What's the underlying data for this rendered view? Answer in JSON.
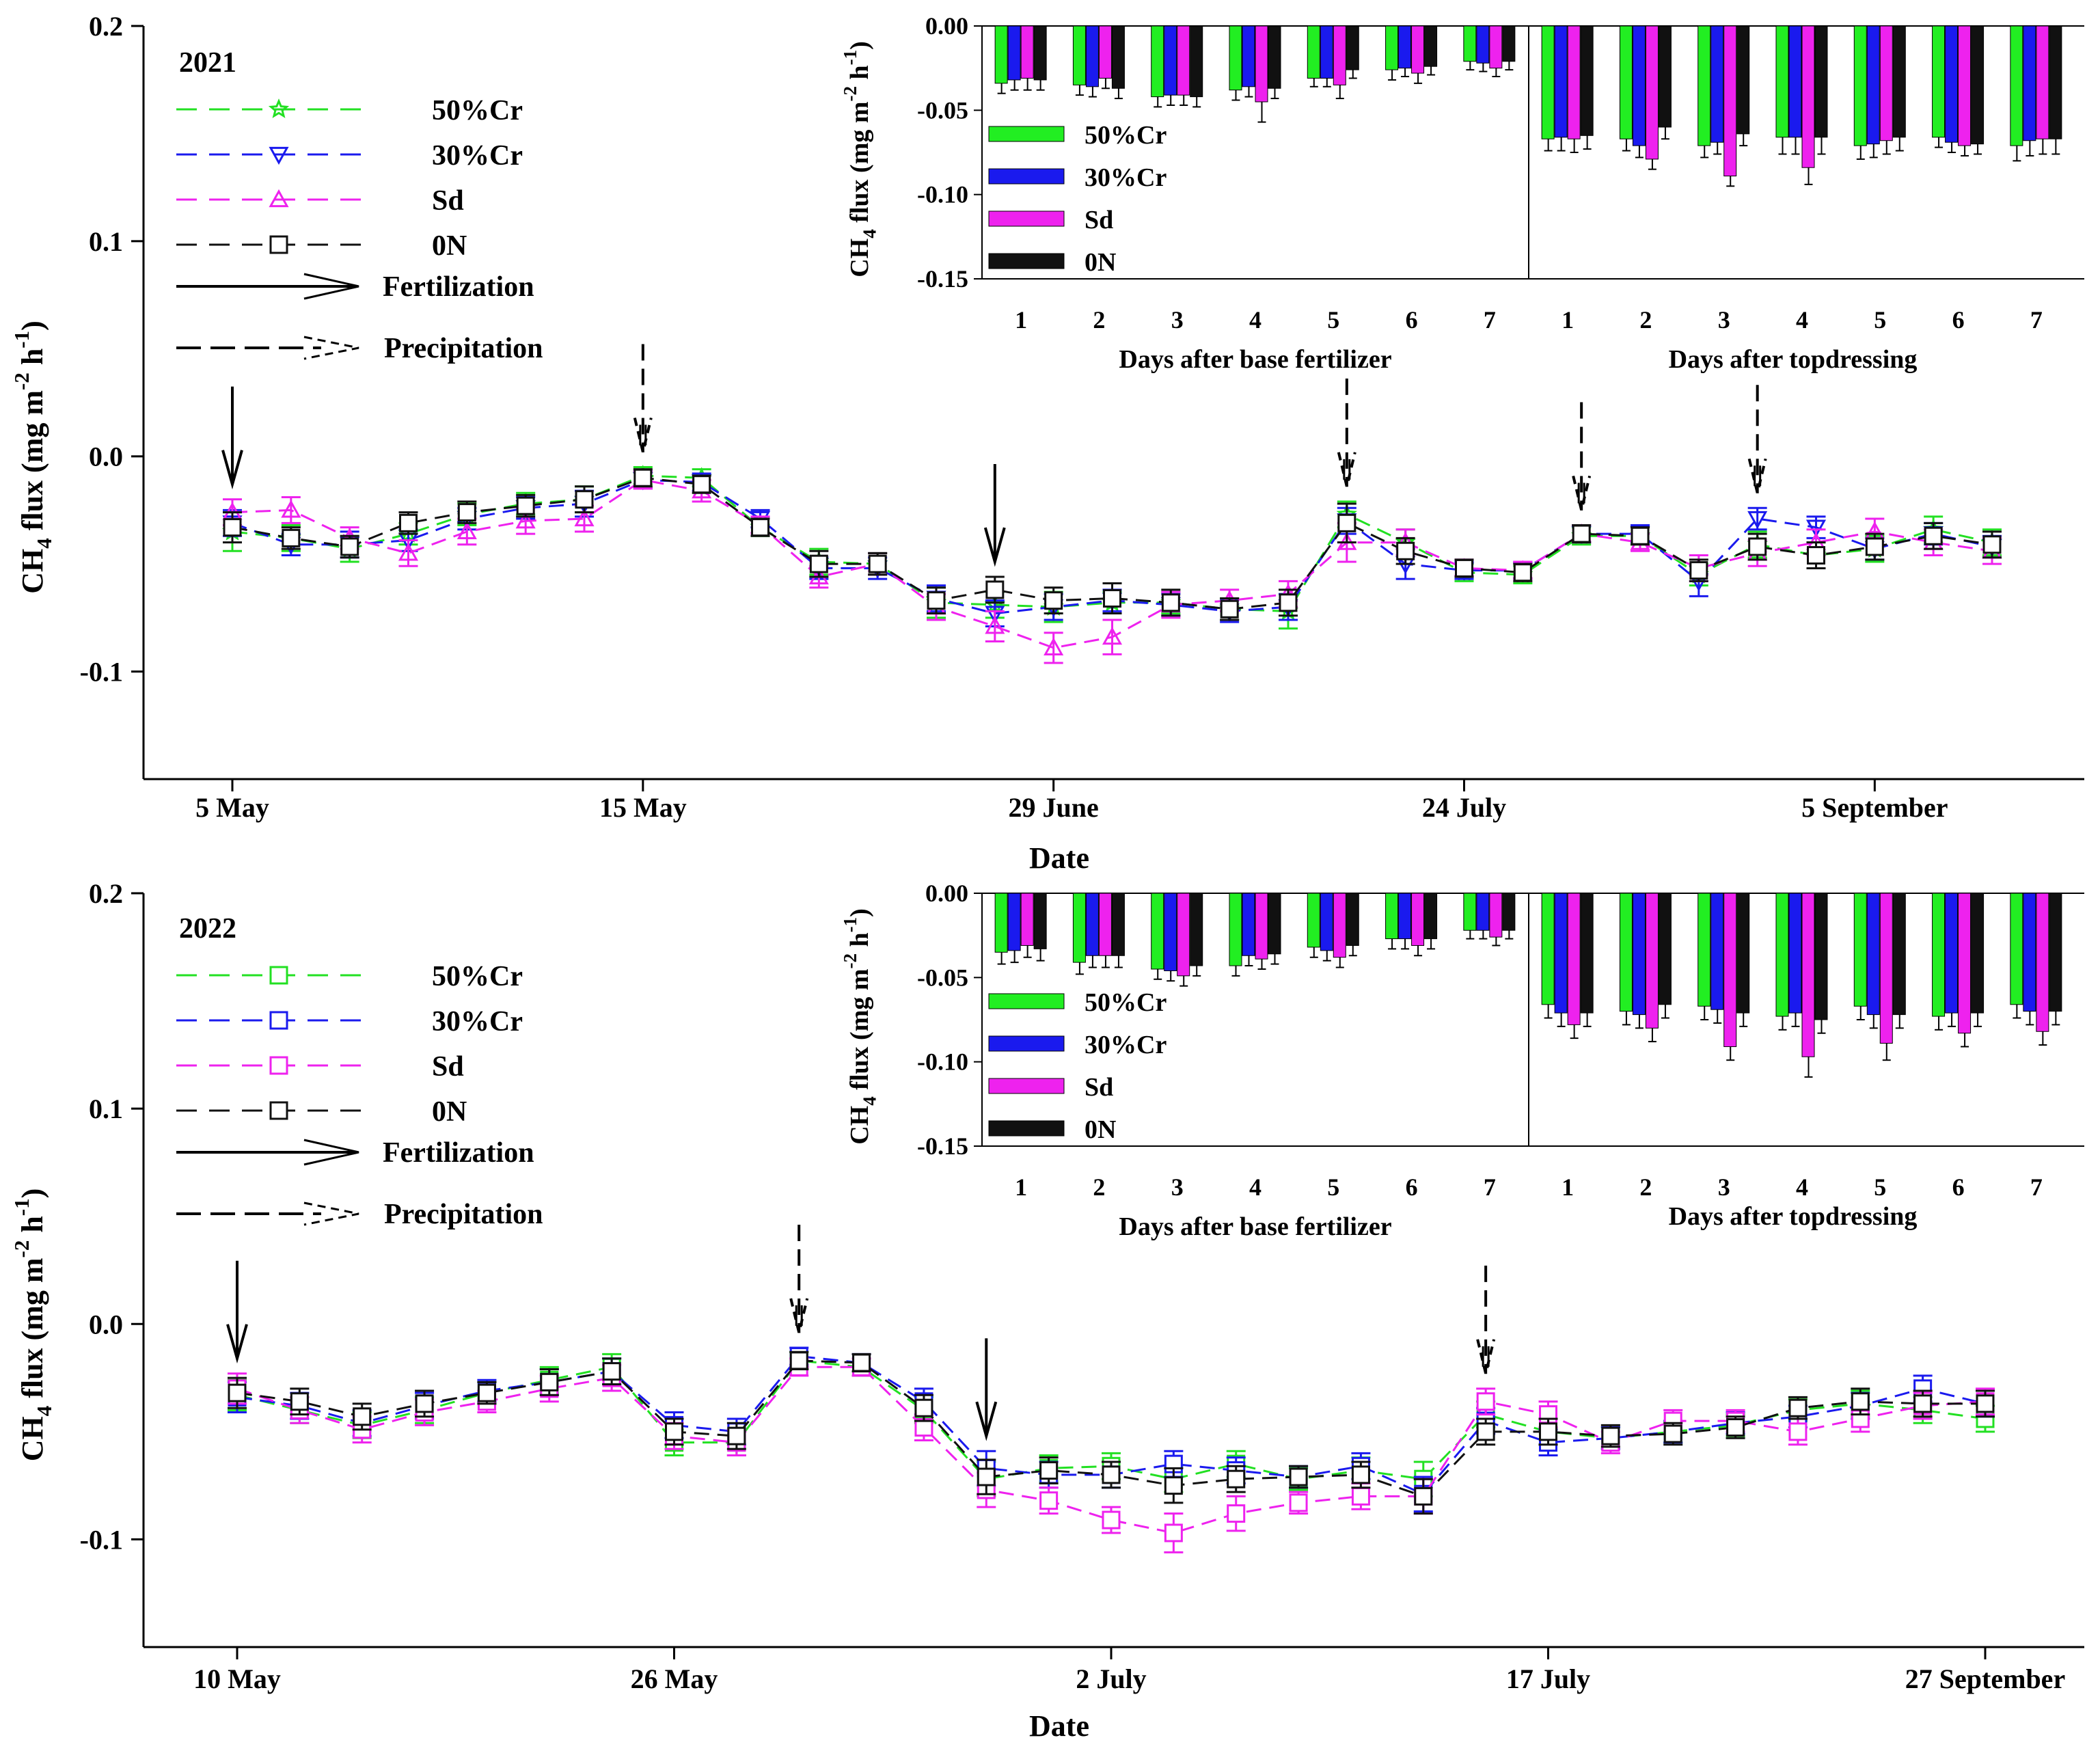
{
  "chart_data": [
    {
      "type": "line",
      "year_label": "2021",
      "xlabel": "Date",
      "ylabel": "CH4 flux (mg m-2 h-1)",
      "ylim": [
        -0.15,
        0.2
      ],
      "yticks": [
        "0.2",
        "0.1",
        "0.0",
        "-0.1"
      ],
      "x_tick_labels": [
        "5 May",
        "15 May",
        "29 June",
        "24 July",
        "5 September"
      ],
      "x_tick_index": [
        0,
        7,
        14,
        21,
        28
      ],
      "x_count": 31,
      "series": [
        {
          "name": "50%Cr",
          "color": "#22e022",
          "marker": "star",
          "values": [
            -0.035,
            -0.038,
            -0.043,
            -0.036,
            -0.027,
            -0.022,
            -0.02,
            -0.009,
            -0.01,
            -0.033,
            -0.049,
            -0.05,
            -0.068,
            -0.069,
            -0.07,
            -0.068,
            -0.068,
            -0.071,
            -0.072,
            -0.027,
            -0.04,
            -0.054,
            -0.055,
            -0.037,
            -0.037,
            -0.055,
            -0.041,
            -0.046,
            -0.043,
            -0.034,
            -0.04
          ],
          "errors": [
            0.009,
            0.006,
            0.006,
            0.005,
            0.005,
            0.005,
            0.006,
            0.004,
            0.004,
            0.004,
            0.006,
            0.005,
            0.007,
            0.006,
            0.007,
            0.005,
            0.005,
            0.005,
            0.008,
            0.006,
            0.006,
            0.004,
            0.004,
            0.004,
            0.004,
            0.005,
            0.006,
            0.006,
            0.006,
            0.006,
            0.006
          ]
        },
        {
          "name": "30%Cr",
          "color": "#1a1aee",
          "marker": "triangle-down",
          "values": [
            -0.031,
            -0.041,
            -0.041,
            -0.039,
            -0.029,
            -0.024,
            -0.022,
            -0.011,
            -0.012,
            -0.029,
            -0.052,
            -0.052,
            -0.066,
            -0.073,
            -0.07,
            -0.067,
            -0.069,
            -0.072,
            -0.07,
            -0.03,
            -0.05,
            -0.053,
            -0.053,
            -0.036,
            -0.036,
            -0.058,
            -0.029,
            -0.033,
            -0.043,
            -0.036,
            -0.042
          ],
          "errors": [
            0.006,
            0.005,
            0.006,
            0.005,
            0.005,
            0.005,
            0.006,
            0.004,
            0.004,
            0.004,
            0.005,
            0.005,
            0.006,
            0.006,
            0.006,
            0.005,
            0.005,
            0.005,
            0.006,
            0.006,
            0.007,
            0.004,
            0.004,
            0.004,
            0.004,
            0.007,
            0.005,
            0.005,
            0.005,
            0.005,
            0.005
          ]
        },
        {
          "name": "Sd",
          "color": "#ee22ee",
          "marker": "triangle-up",
          "values": [
            -0.026,
            -0.025,
            -0.038,
            -0.045,
            -0.035,
            -0.03,
            -0.029,
            -0.011,
            -0.016,
            -0.032,
            -0.056,
            -0.05,
            -0.07,
            -0.079,
            -0.089,
            -0.084,
            -0.069,
            -0.067,
            -0.064,
            -0.04,
            -0.04,
            -0.052,
            -0.053,
            -0.036,
            -0.04,
            -0.052,
            -0.045,
            -0.04,
            -0.035,
            -0.04,
            -0.044
          ],
          "errors": [
            0.006,
            0.006,
            0.005,
            0.006,
            0.006,
            0.006,
            0.006,
            0.004,
            0.005,
            0.004,
            0.005,
            0.005,
            0.006,
            0.007,
            0.007,
            0.008,
            0.006,
            0.005,
            0.006,
            0.009,
            0.006,
            0.004,
            0.004,
            0.004,
            0.004,
            0.006,
            0.006,
            0.006,
            0.006,
            0.006,
            0.006
          ]
        },
        {
          "name": "0N",
          "color": "#111111",
          "marker": "square",
          "values": [
            -0.033,
            -0.038,
            -0.042,
            -0.031,
            -0.026,
            -0.023,
            -0.02,
            -0.01,
            -0.013,
            -0.033,
            -0.05,
            -0.05,
            -0.067,
            -0.062,
            -0.067,
            -0.066,
            -0.068,
            -0.071,
            -0.068,
            -0.031,
            -0.044,
            -0.052,
            -0.054,
            -0.036,
            -0.037,
            -0.053,
            -0.042,
            -0.046,
            -0.042,
            -0.037,
            -0.041
          ],
          "errors": [
            0.007,
            0.005,
            0.005,
            0.005,
            0.005,
            0.005,
            0.006,
            0.004,
            0.004,
            0.004,
            0.006,
            0.005,
            0.006,
            0.006,
            0.006,
            0.007,
            0.006,
            0.005,
            0.006,
            0.009,
            0.006,
            0.004,
            0.004,
            0.004,
            0.004,
            0.005,
            0.006,
            0.006,
            0.006,
            0.006,
            0.006
          ]
        }
      ],
      "fertilization_arrow_index": [
        0,
        13
      ],
      "precipitation_arrow_index": [
        7,
        19,
        23,
        26
      ],
      "legend": {
        "location": "top-left",
        "fertilization_label": "Fertilization",
        "precipitation_label": "Precipitation"
      },
      "inset": {
        "type": "bar",
        "ylabel": "CH4 flux (mg m-2 h-1)",
        "ylim": [
          -0.15,
          0.0
        ],
        "yticks": [
          "0.00",
          "-0.05",
          "-0.10",
          "-0.15"
        ],
        "day_labels": [
          "1",
          "2",
          "3",
          "4",
          "5",
          "6",
          "7"
        ],
        "panel_labels": [
          "Days after base fertilizer",
          "Days after topdressing"
        ],
        "series": [
          {
            "name": "50%Cr",
            "color": "#22ee22",
            "values": [
              -0.034,
              -0.035,
              -0.042,
              -0.038,
              -0.031,
              -0.026,
              -0.021,
              -0.067,
              -0.067,
              -0.071,
              -0.066,
              -0.071,
              -0.066,
              -0.071
            ],
            "errors": [
              0.006,
              0.006,
              0.006,
              0.006,
              0.005,
              0.006,
              0.005,
              0.007,
              0.007,
              0.007,
              0.01,
              0.008,
              0.006,
              0.009
            ]
          },
          {
            "name": "30%Cr",
            "color": "#1a1aee",
            "values": [
              -0.032,
              -0.036,
              -0.041,
              -0.036,
              -0.031,
              -0.025,
              -0.022,
              -0.066,
              -0.071,
              -0.069,
              -0.066,
              -0.07,
              -0.069,
              -0.068
            ],
            "errors": [
              0.006,
              0.006,
              0.006,
              0.006,
              0.005,
              0.005,
              0.005,
              0.008,
              0.007,
              0.007,
              0.01,
              0.008,
              0.006,
              0.009
            ]
          },
          {
            "name": "Sd",
            "color": "#ee22ee",
            "values": [
              -0.031,
              -0.031,
              -0.041,
              -0.045,
              -0.035,
              -0.028,
              -0.025,
              -0.067,
              -0.079,
              -0.089,
              -0.084,
              -0.068,
              -0.071,
              -0.067
            ],
            "errors": [
              0.007,
              0.006,
              0.006,
              0.012,
              0.008,
              0.006,
              0.005,
              0.008,
              0.006,
              0.006,
              0.01,
              0.008,
              0.006,
              0.009
            ]
          },
          {
            "name": "0N",
            "color": "#111111",
            "values": [
              -0.032,
              -0.037,
              -0.042,
              -0.037,
              -0.026,
              -0.024,
              -0.021,
              -0.065,
              -0.06,
              -0.064,
              -0.066,
              -0.066,
              -0.07,
              -0.067
            ],
            "errors": [
              0.006,
              0.006,
              0.006,
              0.006,
              0.005,
              0.005,
              0.005,
              0.008,
              0.007,
              0.007,
              0.01,
              0.008,
              0.006,
              0.009
            ]
          }
        ]
      }
    },
    {
      "type": "line",
      "year_label": "2022",
      "xlabel": "Date",
      "ylabel": "CH4 flux (mg m-2 h-1)",
      "ylim": [
        -0.15,
        0.2
      ],
      "yticks": [
        "0.2",
        "0.1",
        "0.0",
        "-0.1"
      ],
      "x_tick_labels": [
        "10 May",
        "26 May",
        "2 July",
        "17 July",
        "27 September"
      ],
      "x_tick_index": [
        0,
        7,
        14,
        21,
        28
      ],
      "x_count": 29,
      "series": [
        {
          "name": "50%Cr",
          "color": "#22e022",
          "values": [
            -0.033,
            -0.04,
            -0.047,
            -0.04,
            -0.032,
            -0.026,
            -0.02,
            -0.055,
            -0.055,
            -0.017,
            -0.02,
            -0.04,
            -0.072,
            -0.067,
            -0.066,
            -0.072,
            -0.065,
            -0.072,
            -0.068,
            -0.072,
            -0.042,
            -0.05,
            -0.053,
            -0.05,
            -0.047,
            -0.04,
            -0.037,
            -0.04,
            -0.044
          ],
          "errors": [
            0.007,
            0.006,
            0.006,
            0.006,
            0.005,
            0.006,
            0.006,
            0.006,
            0.006,
            0.004,
            0.004,
            0.006,
            0.008,
            0.006,
            0.006,
            0.006,
            0.006,
            0.005,
            0.006,
            0.008,
            0.006,
            0.006,
            0.005,
            0.005,
            0.005,
            0.005,
            0.006,
            0.006,
            0.006
          ]
        },
        {
          "name": "30%Cr",
          "color": "#1a1aee",
          "values": [
            -0.034,
            -0.038,
            -0.046,
            -0.038,
            -0.031,
            -0.027,
            -0.022,
            -0.047,
            -0.05,
            -0.015,
            -0.018,
            -0.036,
            -0.067,
            -0.07,
            -0.07,
            -0.065,
            -0.068,
            -0.071,
            -0.066,
            -0.079,
            -0.045,
            -0.055,
            -0.053,
            -0.05,
            -0.046,
            -0.043,
            -0.038,
            -0.03,
            -0.037
          ],
          "errors": [
            0.007,
            0.006,
            0.006,
            0.006,
            0.005,
            0.006,
            0.006,
            0.006,
            0.006,
            0.004,
            0.004,
            0.006,
            0.008,
            0.006,
            0.006,
            0.006,
            0.006,
            0.005,
            0.006,
            0.008,
            0.006,
            0.006,
            0.005,
            0.005,
            0.005,
            0.005,
            0.006,
            0.006,
            0.006
          ]
        },
        {
          "name": "Sd",
          "color": "#ee22ee",
          "values": [
            -0.03,
            -0.04,
            -0.049,
            -0.041,
            -0.036,
            -0.03,
            -0.025,
            -0.052,
            -0.055,
            -0.02,
            -0.02,
            -0.048,
            -0.077,
            -0.082,
            -0.091,
            -0.097,
            -0.088,
            -0.083,
            -0.08,
            -0.08,
            -0.036,
            -0.042,
            -0.055,
            -0.045,
            -0.045,
            -0.05,
            -0.044,
            -0.038,
            -0.036
          ],
          "errors": [
            0.007,
            0.006,
            0.006,
            0.006,
            0.005,
            0.006,
            0.006,
            0.006,
            0.006,
            0.004,
            0.004,
            0.006,
            0.008,
            0.006,
            0.006,
            0.009,
            0.008,
            0.005,
            0.006,
            0.008,
            0.006,
            0.006,
            0.005,
            0.005,
            0.005,
            0.006,
            0.006,
            0.006,
            0.006
          ]
        },
        {
          "name": "0N",
          "color": "#111111",
          "values": [
            -0.032,
            -0.036,
            -0.043,
            -0.037,
            -0.032,
            -0.027,
            -0.022,
            -0.05,
            -0.052,
            -0.017,
            -0.018,
            -0.039,
            -0.071,
            -0.068,
            -0.07,
            -0.075,
            -0.072,
            -0.071,
            -0.07,
            -0.08,
            -0.05,
            -0.05,
            -0.052,
            -0.051,
            -0.048,
            -0.039,
            -0.036,
            -0.037,
            -0.037
          ],
          "errors": [
            0.007,
            0.006,
            0.006,
            0.006,
            0.005,
            0.006,
            0.006,
            0.006,
            0.006,
            0.004,
            0.004,
            0.006,
            0.008,
            0.006,
            0.006,
            0.008,
            0.006,
            0.005,
            0.006,
            0.008,
            0.006,
            0.006,
            0.005,
            0.005,
            0.005,
            0.005,
            0.006,
            0.006,
            0.006
          ]
        }
      ],
      "fertilization_arrow_index": [
        0,
        12
      ],
      "precipitation_arrow_index": [
        9,
        20
      ],
      "legend": {
        "location": "top-left",
        "fertilization_label": "Fertilization",
        "precipitation_label": "Precipitation"
      },
      "inset": {
        "type": "bar",
        "ylabel": "CH4 flux (mg m-2 h-1)",
        "ylim": [
          -0.15,
          0.0
        ],
        "yticks": [
          "0.00",
          "-0.05",
          "-0.10",
          "-0.15"
        ],
        "day_labels": [
          "1",
          "2",
          "3",
          "4",
          "5",
          "6",
          "7"
        ],
        "panel_labels": [
          "Days after base fertilizer",
          "Days after topdressing"
        ],
        "series": [
          {
            "name": "50%Cr",
            "color": "#22ee22",
            "values": [
              -0.035,
              -0.041,
              -0.045,
              -0.043,
              -0.032,
              -0.027,
              -0.022,
              -0.066,
              -0.07,
              -0.067,
              -0.073,
              -0.067,
              -0.073,
              -0.066
            ],
            "errors": [
              0.007,
              0.007,
              0.006,
              0.006,
              0.006,
              0.006,
              0.005,
              0.008,
              0.008,
              0.008,
              0.008,
              0.008,
              0.008,
              0.008
            ]
          },
          {
            "name": "30%Cr",
            "color": "#1a1aee",
            "values": [
              -0.034,
              -0.037,
              -0.046,
              -0.037,
              -0.034,
              -0.027,
              -0.022,
              -0.071,
              -0.072,
              -0.069,
              -0.071,
              -0.072,
              -0.071,
              -0.07
            ],
            "errors": [
              0.007,
              0.007,
              0.006,
              0.006,
              0.006,
              0.006,
              0.005,
              0.008,
              0.008,
              0.008,
              0.008,
              0.008,
              0.008,
              0.008
            ]
          },
          {
            "name": "Sd",
            "color": "#ee22ee",
            "values": [
              -0.031,
              -0.037,
              -0.049,
              -0.039,
              -0.038,
              -0.031,
              -0.026,
              -0.078,
              -0.08,
              -0.091,
              -0.097,
              -0.089,
              -0.083,
              -0.082
            ],
            "errors": [
              0.007,
              0.007,
              0.006,
              0.006,
              0.006,
              0.006,
              0.005,
              0.008,
              0.008,
              0.008,
              0.012,
              0.01,
              0.008,
              0.008
            ]
          },
          {
            "name": "0N",
            "color": "#111111",
            "values": [
              -0.033,
              -0.037,
              -0.043,
              -0.036,
              -0.031,
              -0.027,
              -0.022,
              -0.071,
              -0.066,
              -0.071,
              -0.075,
              -0.072,
              -0.071,
              -0.07
            ],
            "errors": [
              0.007,
              0.007,
              0.006,
              0.006,
              0.006,
              0.006,
              0.005,
              0.008,
              0.008,
              0.008,
              0.008,
              0.008,
              0.008,
              0.008
            ]
          }
        ]
      }
    }
  ]
}
